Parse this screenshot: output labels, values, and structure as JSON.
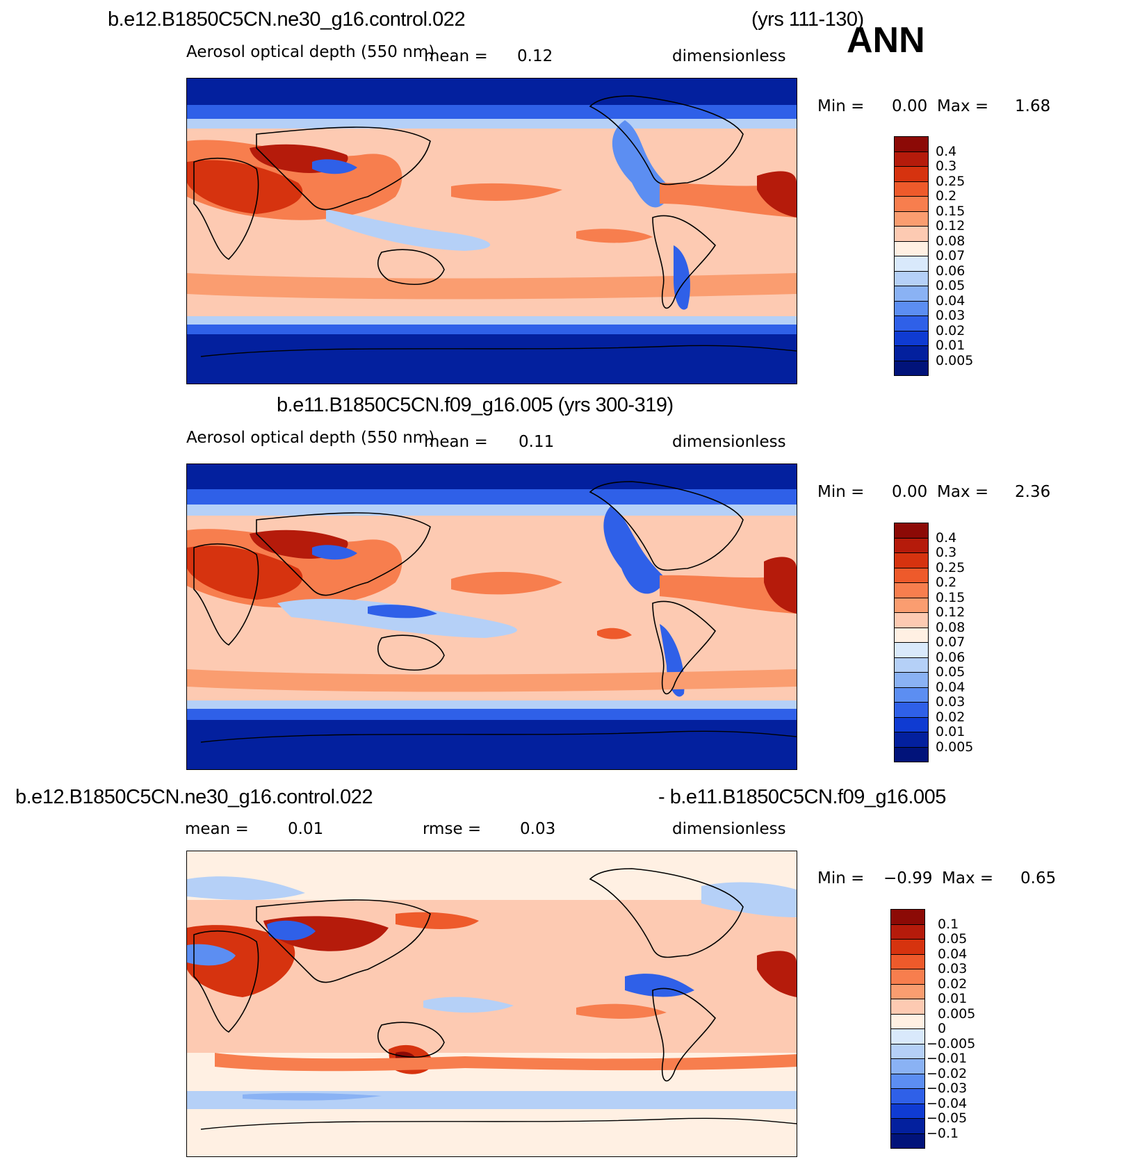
{
  "season": "ANN",
  "panels": [
    {
      "case": "b.e12.B1850C5CN.ne30_g16.control.022",
      "years": "(yrs 111-130)",
      "variable": "Aerosol optical depth (550 nm)",
      "mean_text": "mean =",
      "mean_value": "0.12",
      "units": "dimensionless",
      "min_label": "Min =",
      "min_value": "0.00",
      "max_label": "Max =",
      "max_value": "1.68"
    },
    {
      "case_years": "b.e11.B1850C5CN.f09_g16.005 (yrs 300-319)",
      "variable": "Aerosol optical depth (550 nm)",
      "mean_text": "mean =",
      "mean_value": "0.11",
      "units": "dimensionless",
      "min_label": "Min =",
      "min_value": "0.00",
      "max_label": "Max =",
      "max_value": "2.36"
    },
    {
      "case_a": "b.e12.B1850C5CN.ne30_g16.control.022",
      "case_b": "- b.e11.B1850C5CN.f09_g16.005",
      "mean_text": "mean =",
      "mean_value": "0.01",
      "rmse_text": "rmse =",
      "rmse_value": "0.03",
      "units": "dimensionless",
      "min_label": "Min =",
      "min_value": "−0.99",
      "max_label": "Max =",
      "max_value": "0.65"
    }
  ],
  "chart_data": [
    {
      "type": "heatmap",
      "title": "b.e12.B1850C5CN.ne30_g16.control.022 (yrs 111-130)",
      "variable": "Aerosol optical depth (550 nm)",
      "units": "dimensionless",
      "mean": 0.12,
      "min": 0.0,
      "max": 1.68,
      "colorbar_levels": [
        "0.4",
        "0.3",
        "0.25",
        "0.2",
        "0.15",
        "0.12",
        "0.08",
        "0.07",
        "0.06",
        "0.05",
        "0.04",
        "0.03",
        "0.02",
        "0.01",
        "0.005"
      ],
      "colorbar_colors": [
        "#8c0a06",
        "#b51b0b",
        "#d6330f",
        "#ee5a2b",
        "#f77e4e",
        "#fa9d70",
        "#fdcab2",
        "#fff0e3",
        "#d9e9fb",
        "#b5d0f7",
        "#8ab2f4",
        "#5c8ef2",
        "#2f60e8",
        "#0f3bd2",
        "#03209e",
        "#01137a"
      ]
    },
    {
      "type": "heatmap",
      "title": "b.e11.B1850C5CN.f09_g16.005 (yrs 300-319)",
      "variable": "Aerosol optical depth (550 nm)",
      "units": "dimensionless",
      "mean": 0.11,
      "min": 0.0,
      "max": 2.36,
      "colorbar_levels": [
        "0.4",
        "0.3",
        "0.25",
        "0.2",
        "0.15",
        "0.12",
        "0.08",
        "0.07",
        "0.06",
        "0.05",
        "0.04",
        "0.03",
        "0.02",
        "0.01",
        "0.005"
      ],
      "colorbar_colors": [
        "#8c0a06",
        "#b51b0b",
        "#d6330f",
        "#ee5a2b",
        "#f77e4e",
        "#fa9d70",
        "#fdcab2",
        "#fff0e3",
        "#d9e9fb",
        "#b5d0f7",
        "#8ab2f4",
        "#5c8ef2",
        "#2f60e8",
        "#0f3bd2",
        "#03209e",
        "#01137a"
      ]
    },
    {
      "type": "heatmap",
      "title": "b.e12.B1850C5CN.ne30_g16.control.022 - b.e11.B1850C5CN.f09_g16.005",
      "units": "dimensionless",
      "mean": 0.01,
      "rmse": 0.03,
      "min": -0.99,
      "max": 0.65,
      "colorbar_levels": [
        "0.1",
        "0.05",
        "0.04",
        "0.03",
        "0.02",
        "0.01",
        "0.005",
        "0",
        "−0.005",
        "−0.01",
        "−0.02",
        "−0.03",
        "−0.04",
        "−0.05",
        "−0.1"
      ],
      "colorbar_colors": [
        "#8c0a06",
        "#b51b0b",
        "#d6330f",
        "#ee5a2b",
        "#f77e4e",
        "#fa9d70",
        "#fdcab2",
        "#fff0e3",
        "#d9e9fb",
        "#b5d0f7",
        "#8ab2f4",
        "#5c8ef2",
        "#2f60e8",
        "#0f3bd2",
        "#03209e",
        "#01137a"
      ]
    }
  ]
}
